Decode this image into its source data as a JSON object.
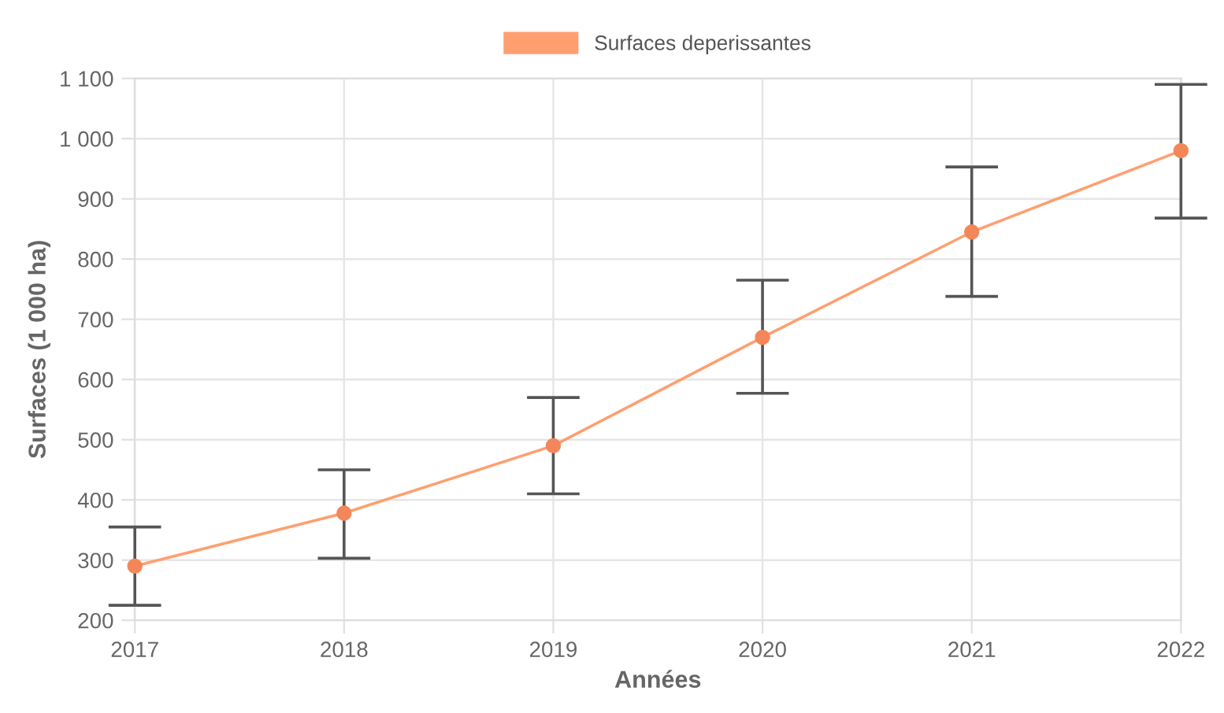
{
  "chart_data": {
    "type": "line",
    "xlabel": "Années",
    "ylabel": "Surfaces (1 000 ha)",
    "categories": [
      "2017",
      "2018",
      "2019",
      "2020",
      "2021",
      "2022"
    ],
    "series": [
      {
        "name": "Surfaces deperissantes",
        "color": "#ff9f70",
        "values": [
          290,
          378,
          490,
          670,
          845,
          980
        ],
        "errors": [
          [
            225,
            355
          ],
          [
            303,
            450
          ],
          [
            410,
            570
          ],
          [
            577,
            765
          ],
          [
            738,
            953
          ],
          [
            868,
            1090
          ]
        ]
      }
    ],
    "ylim": [
      200,
      1100
    ],
    "yticks": [
      200,
      300,
      400,
      500,
      600,
      700,
      800,
      900,
      {
        "value": 1000,
        "label": "1 000"
      },
      {
        "value": 1100,
        "label": "1 100"
      }
    ],
    "grid": true,
    "legend": "top",
    "marker": "circle",
    "line_style": "solid"
  }
}
